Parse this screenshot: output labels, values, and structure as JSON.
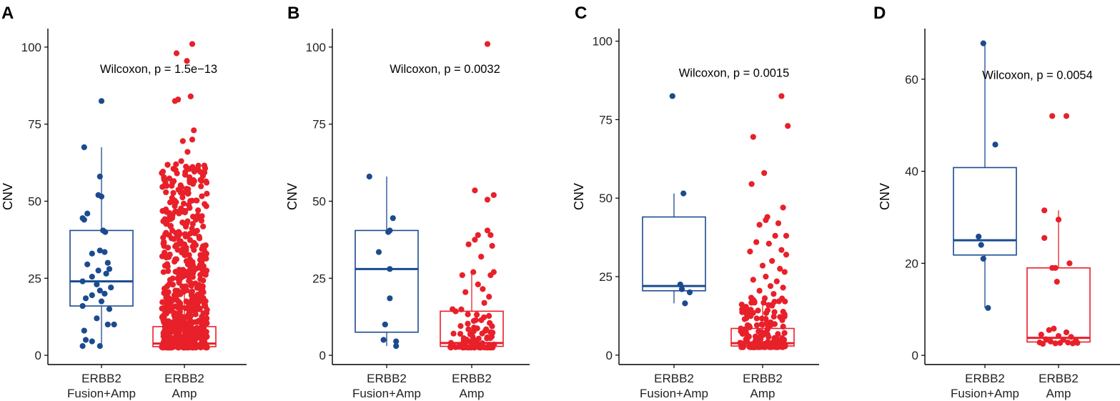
{
  "colors": {
    "fusion": "#1b4b8f",
    "amp": "#e8202a"
  },
  "chart_data": [
    {
      "panel": "A",
      "type": "box+jitter",
      "ylabel": "CNV",
      "ylim": [
        -3,
        106
      ],
      "yticks": [
        0,
        25,
        50,
        75,
        100
      ],
      "annotation": "Wilcoxon, p = 1.5e−13",
      "annotation_y": 93,
      "groups": [
        {
          "line1": "ERBB2",
          "line2": "Fusion+Amp",
          "color_key": "fusion",
          "box": {
            "q1": 16,
            "median": 24,
            "q3": 40.5,
            "whisker_low": 3,
            "whisker_high": 67.5
          },
          "points": [
            {
              "x": 0.0,
              "y": 82.5
            },
            {
              "x": -0.55,
              "y": 67.5
            },
            {
              "x": -0.05,
              "y": 58
            },
            {
              "x": -0.1,
              "y": 52
            },
            {
              "x": 0.0,
              "y": 51.5
            },
            {
              "x": -0.45,
              "y": 46
            },
            {
              "x": -0.6,
              "y": 44.5
            },
            {
              "x": -0.55,
              "y": 44
            },
            {
              "x": 0.05,
              "y": 40.5
            },
            {
              "x": 0.12,
              "y": 40
            },
            {
              "x": -0.05,
              "y": 34
            },
            {
              "x": 0.1,
              "y": 33.5
            },
            {
              "x": -0.3,
              "y": 33
            },
            {
              "x": 0.2,
              "y": 30
            },
            {
              "x": -0.45,
              "y": 29.5
            },
            {
              "x": 0.25,
              "y": 28
            },
            {
              "x": -0.1,
              "y": 27.5
            },
            {
              "x": 0.15,
              "y": 26.5
            },
            {
              "x": -0.3,
              "y": 25.5
            },
            {
              "x": -0.6,
              "y": 24
            },
            {
              "x": -0.15,
              "y": 23
            },
            {
              "x": 0.3,
              "y": 22
            },
            {
              "x": -0.05,
              "y": 21
            },
            {
              "x": 0.1,
              "y": 20
            },
            {
              "x": -0.3,
              "y": 19.5
            },
            {
              "x": -0.5,
              "y": 18.5
            },
            {
              "x": 0.0,
              "y": 17.5
            },
            {
              "x": -0.6,
              "y": 16
            },
            {
              "x": 0.25,
              "y": 15
            },
            {
              "x": -0.15,
              "y": 12
            },
            {
              "x": 0.4,
              "y": 10
            },
            {
              "x": 0.2,
              "y": 10
            },
            {
              "x": -0.55,
              "y": 8
            },
            {
              "x": -0.5,
              "y": 5
            },
            {
              "x": -0.3,
              "y": 4.5
            },
            {
              "x": -0.6,
              "y": 3
            },
            {
              "x": -0.05,
              "y": 3
            }
          ]
        },
        {
          "line1": "ERBB2",
          "line2": "Amp",
          "color_key": "amp",
          "box": {
            "q1": 2.8,
            "median": 3.8,
            "q3": 9.3,
            "whisker_low": 2.5,
            "whisker_high": 23
          },
          "points": [
            {
              "x": 0.25,
              "y": 101
            },
            {
              "x": -0.25,
              "y": 98
            },
            {
              "x": 0.08,
              "y": 95.5
            },
            {
              "x": 0.2,
              "y": 84
            },
            {
              "x": -0.2,
              "y": 83
            },
            {
              "x": -0.3,
              "y": 82.5
            },
            {
              "x": 0.3,
              "y": 73
            },
            {
              "x": 0.25,
              "y": 70
            },
            {
              "x": -0.05,
              "y": 69.5
            },
            {
              "x": 0.1,
              "y": 66
            },
            {
              "x": -0.1,
              "y": 63
            }
          ],
          "cloud": {
            "count": 650,
            "min": 2.5,
            "max": 62,
            "width": 0.72,
            "seed": 11
          }
        }
      ]
    },
    {
      "panel": "B",
      "type": "box+jitter",
      "ylabel": "CNV",
      "ylim": [
        -3,
        106
      ],
      "yticks": [
        0,
        25,
        50,
        75,
        100
      ],
      "annotation": "Wilcoxon, p = 0.0032",
      "annotation_y": 93,
      "groups": [
        {
          "line1": "ERBB2",
          "line2": "Fusion+Amp",
          "color_key": "fusion",
          "box": {
            "q1": 7.5,
            "median": 28,
            "q3": 40.5,
            "whisker_low": 3,
            "whisker_high": 58
          },
          "points": [
            {
              "x": -0.55,
              "y": 58
            },
            {
              "x": 0.2,
              "y": 44.5
            },
            {
              "x": 0.1,
              "y": 40.5
            },
            {
              "x": 0.05,
              "y": 40
            },
            {
              "x": -0.25,
              "y": 33.5
            },
            {
              "x": 0.1,
              "y": 28
            },
            {
              "x": 0.1,
              "y": 18.5
            },
            {
              "x": -0.05,
              "y": 10
            },
            {
              "x": -0.1,
              "y": 5
            },
            {
              "x": 0.3,
              "y": 4.5
            },
            {
              "x": 0.3,
              "y": 3
            }
          ]
        },
        {
          "line1": "ERBB2",
          "line2": "Amp",
          "color_key": "amp",
          "box": {
            "q1": 2.9,
            "median": 4,
            "q3": 14.3,
            "whisker_low": 2.5,
            "whisker_high": 27
          },
          "points": [
            {
              "x": 0.5,
              "y": 101
            },
            {
              "x": 0.1,
              "y": 53.5
            },
            {
              "x": 0.7,
              "y": 52
            },
            {
              "x": 0.5,
              "y": 50.5
            },
            {
              "x": 0.5,
              "y": 40.5
            },
            {
              "x": 0.2,
              "y": 39
            },
            {
              "x": 0.6,
              "y": 39
            },
            {
              "x": 0.65,
              "y": 35.5
            },
            {
              "x": 0.1,
              "y": 37.5
            },
            {
              "x": -0.1,
              "y": 36
            },
            {
              "x": 0.3,
              "y": 32
            },
            {
              "x": 0.05,
              "y": 27
            },
            {
              "x": 0.7,
              "y": 27
            },
            {
              "x": 0.6,
              "y": 26
            },
            {
              "x": -0.3,
              "y": 26
            },
            {
              "x": 0.2,
              "y": 23
            },
            {
              "x": 0.35,
              "y": 21.5
            },
            {
              "x": -0.2,
              "y": 20.5
            },
            {
              "x": 0.55,
              "y": 19
            },
            {
              "x": 0.4,
              "y": 17
            }
          ],
          "cloud": {
            "count": 85,
            "min": 2.5,
            "max": 15,
            "width": 0.72,
            "seed": 23
          }
        }
      ]
    },
    {
      "panel": "C",
      "type": "box+jitter",
      "ylabel": "CNV",
      "ylim": [
        -3,
        104
      ],
      "yticks": [
        0,
        25,
        50,
        75,
        100
      ],
      "annotation": "Wilcoxon, p = 0.0015",
      "annotation_y": 90,
      "groups": [
        {
          "line1": "ERBB2",
          "line2": "Fusion+Amp",
          "color_key": "fusion",
          "box": {
            "q1": 20.5,
            "median": 22,
            "q3": 44,
            "whisker_low": 16.5,
            "whisker_high": 51.5
          },
          "points": [
            {
              "x": -0.05,
              "y": 82.5
            },
            {
              "x": 0.3,
              "y": 51.5
            },
            {
              "x": 0.2,
              "y": 22.5
            },
            {
              "x": 0.25,
              "y": 21
            },
            {
              "x": 0.5,
              "y": 20
            },
            {
              "x": 0.35,
              "y": 16.5
            }
          ]
        },
        {
          "line1": "ERBB2",
          "line2": "Amp",
          "color_key": "amp",
          "box": {
            "q1": 2.9,
            "median": 3.8,
            "q3": 8.5,
            "whisker_low": 2.5,
            "whisker_high": 17.5
          },
          "points": [
            {
              "x": 0.6,
              "y": 82.5
            },
            {
              "x": 0.8,
              "y": 73
            },
            {
              "x": -0.3,
              "y": 69.5
            },
            {
              "x": 0.05,
              "y": 58
            },
            {
              "x": -0.35,
              "y": 54.5
            },
            {
              "x": 0.65,
              "y": 47
            },
            {
              "x": 0.15,
              "y": 44
            },
            {
              "x": 0.1,
              "y": 43
            },
            {
              "x": -0.1,
              "y": 41.5
            },
            {
              "x": 0.5,
              "y": 42
            },
            {
              "x": 0.4,
              "y": 38
            },
            {
              "x": 0.75,
              "y": 38
            },
            {
              "x": -0.2,
              "y": 36
            },
            {
              "x": 0.2,
              "y": 35.5
            },
            {
              "x": 0.6,
              "y": 33.5
            },
            {
              "x": -0.4,
              "y": 33
            },
            {
              "x": 0.75,
              "y": 32
            },
            {
              "x": 0.3,
              "y": 30
            },
            {
              "x": 0.0,
              "y": 28.5
            },
            {
              "x": 0.55,
              "y": 27.5
            },
            {
              "x": 0.7,
              "y": 26.5
            },
            {
              "x": 0.1,
              "y": 25
            },
            {
              "x": -0.3,
              "y": 24
            },
            {
              "x": 0.45,
              "y": 23.5
            },
            {
              "x": 0.25,
              "y": 22
            },
            {
              "x": 0.65,
              "y": 21.5
            },
            {
              "x": -0.1,
              "y": 20.5
            },
            {
              "x": 0.35,
              "y": 19.5
            }
          ],
          "cloud": {
            "count": 160,
            "min": 2.5,
            "max": 19,
            "width": 0.72,
            "seed": 37
          }
        }
      ]
    },
    {
      "panel": "D",
      "type": "box+jitter",
      "ylabel": "CNV",
      "ylim": [
        -2,
        71
      ],
      "yticks": [
        0,
        20,
        40,
        60
      ],
      "annotation": "Wilcoxon, p = 0.0054",
      "annotation_y": 61,
      "groups": [
        {
          "line1": "ERBB2",
          "line2": "Fusion+Amp",
          "color_key": "fusion",
          "box": {
            "q1": 21.8,
            "median": 25,
            "q3": 40.8,
            "whisker_low": 10.3,
            "whisker_high": 67.8
          },
          "points": [
            {
              "x": -0.05,
              "y": 67.8
            },
            {
              "x": 0.33,
              "y": 45.8
            },
            {
              "x": -0.2,
              "y": 25.8
            },
            {
              "x": -0.12,
              "y": 24
            },
            {
              "x": -0.05,
              "y": 21
            },
            {
              "x": 0.1,
              "y": 10.3
            }
          ]
        },
        {
          "line1": "ERBB2",
          "line2": "Amp",
          "color_key": "amp",
          "box": {
            "q1": 2.9,
            "median": 3.8,
            "q3": 19,
            "whisker_low": 2.6,
            "whisker_high": 31.5
          },
          "points": [
            {
              "x": -0.2,
              "y": 52
            },
            {
              "x": 0.25,
              "y": 52
            },
            {
              "x": -0.45,
              "y": 31.5
            },
            {
              "x": 0.0,
              "y": 29.5
            },
            {
              "x": -0.45,
              "y": 25.5
            },
            {
              "x": 0.35,
              "y": 20
            },
            {
              "x": -0.2,
              "y": 19
            },
            {
              "x": -0.1,
              "y": 19
            },
            {
              "x": -0.05,
              "y": 16
            },
            {
              "x": -0.3,
              "y": 5.5
            },
            {
              "x": -0.15,
              "y": 5.8
            },
            {
              "x": 0.25,
              "y": 5
            },
            {
              "x": -0.55,
              "y": 4.5
            },
            {
              "x": 0.0,
              "y": 4.2
            },
            {
              "x": 0.4,
              "y": 4
            },
            {
              "x": -0.4,
              "y": 3.5
            },
            {
              "x": 0.15,
              "y": 3.4
            },
            {
              "x": 0.55,
              "y": 3.2
            },
            {
              "x": -0.25,
              "y": 3
            },
            {
              "x": 0.3,
              "y": 2.8
            },
            {
              "x": -0.6,
              "y": 2.8
            },
            {
              "x": 0.05,
              "y": 2.7
            },
            {
              "x": 0.6,
              "y": 2.7
            },
            {
              "x": -0.1,
              "y": 2.6
            },
            {
              "x": 0.45,
              "y": 2.6
            },
            {
              "x": -0.5,
              "y": 2.5
            }
          ]
        }
      ]
    }
  ]
}
